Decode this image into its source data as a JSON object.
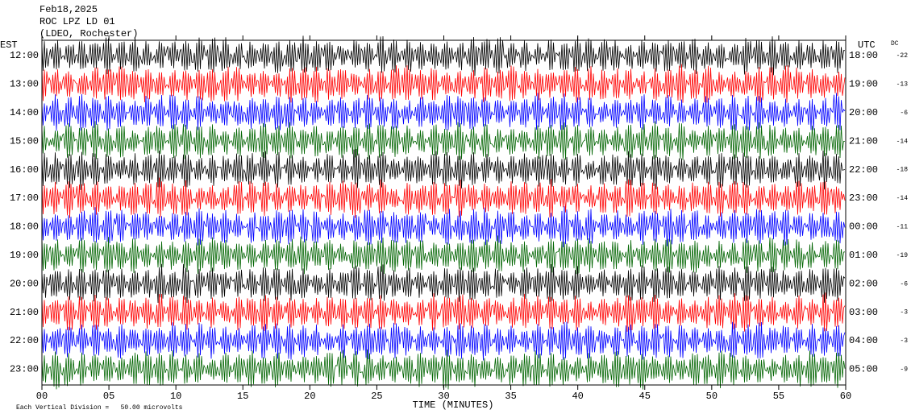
{
  "chart_data": {
    "type": "helicorder",
    "title": [
      "Feb18,2025",
      "ROC LPZ LD 01",
      "(LDEO, Rochester)"
    ],
    "left_axis_label": "EST",
    "right_axis_label": "UTC",
    "dc_label": "DC",
    "xlabel": "TIME (MINUTES)",
    "footnote": "Each Vertical Division =   50.00 microvolts",
    "xlim": [
      0,
      60
    ],
    "xticks": [
      {
        "value": 0,
        "label": "00"
      },
      {
        "value": 5,
        "label": "05"
      },
      10,
      15,
      20,
      25,
      30,
      35,
      40,
      45,
      50,
      55,
      60
    ],
    "colors": [
      "#000000",
      "#ff0000",
      "#0000ff",
      "#006400"
    ],
    "rows": [
      {
        "est": "12:00",
        "utc": "18:00",
        "dc": -22
      },
      {
        "est": "13:00",
        "utc": "19:00",
        "dc": -13
      },
      {
        "est": "14:00",
        "utc": "20:00",
        "dc": -6
      },
      {
        "est": "15:00",
        "utc": "21:00",
        "dc": -14
      },
      {
        "est": "16:00",
        "utc": "22:00",
        "dc": -18
      },
      {
        "est": "17:00",
        "utc": "23:00",
        "dc": -14
      },
      {
        "est": "18:00",
        "utc": "00:00",
        "dc": -11
      },
      {
        "est": "19:00",
        "utc": "01:00",
        "dc": -19
      },
      {
        "est": "20:00",
        "utc": "02:00",
        "dc": -6
      },
      {
        "est": "21:00",
        "utc": "03:00",
        "dc": -3
      },
      {
        "est": "22:00",
        "utc": "04:00",
        "dc": -3
      },
      {
        "est": "23:00",
        "utc": "05:00",
        "dc": -9
      }
    ]
  }
}
